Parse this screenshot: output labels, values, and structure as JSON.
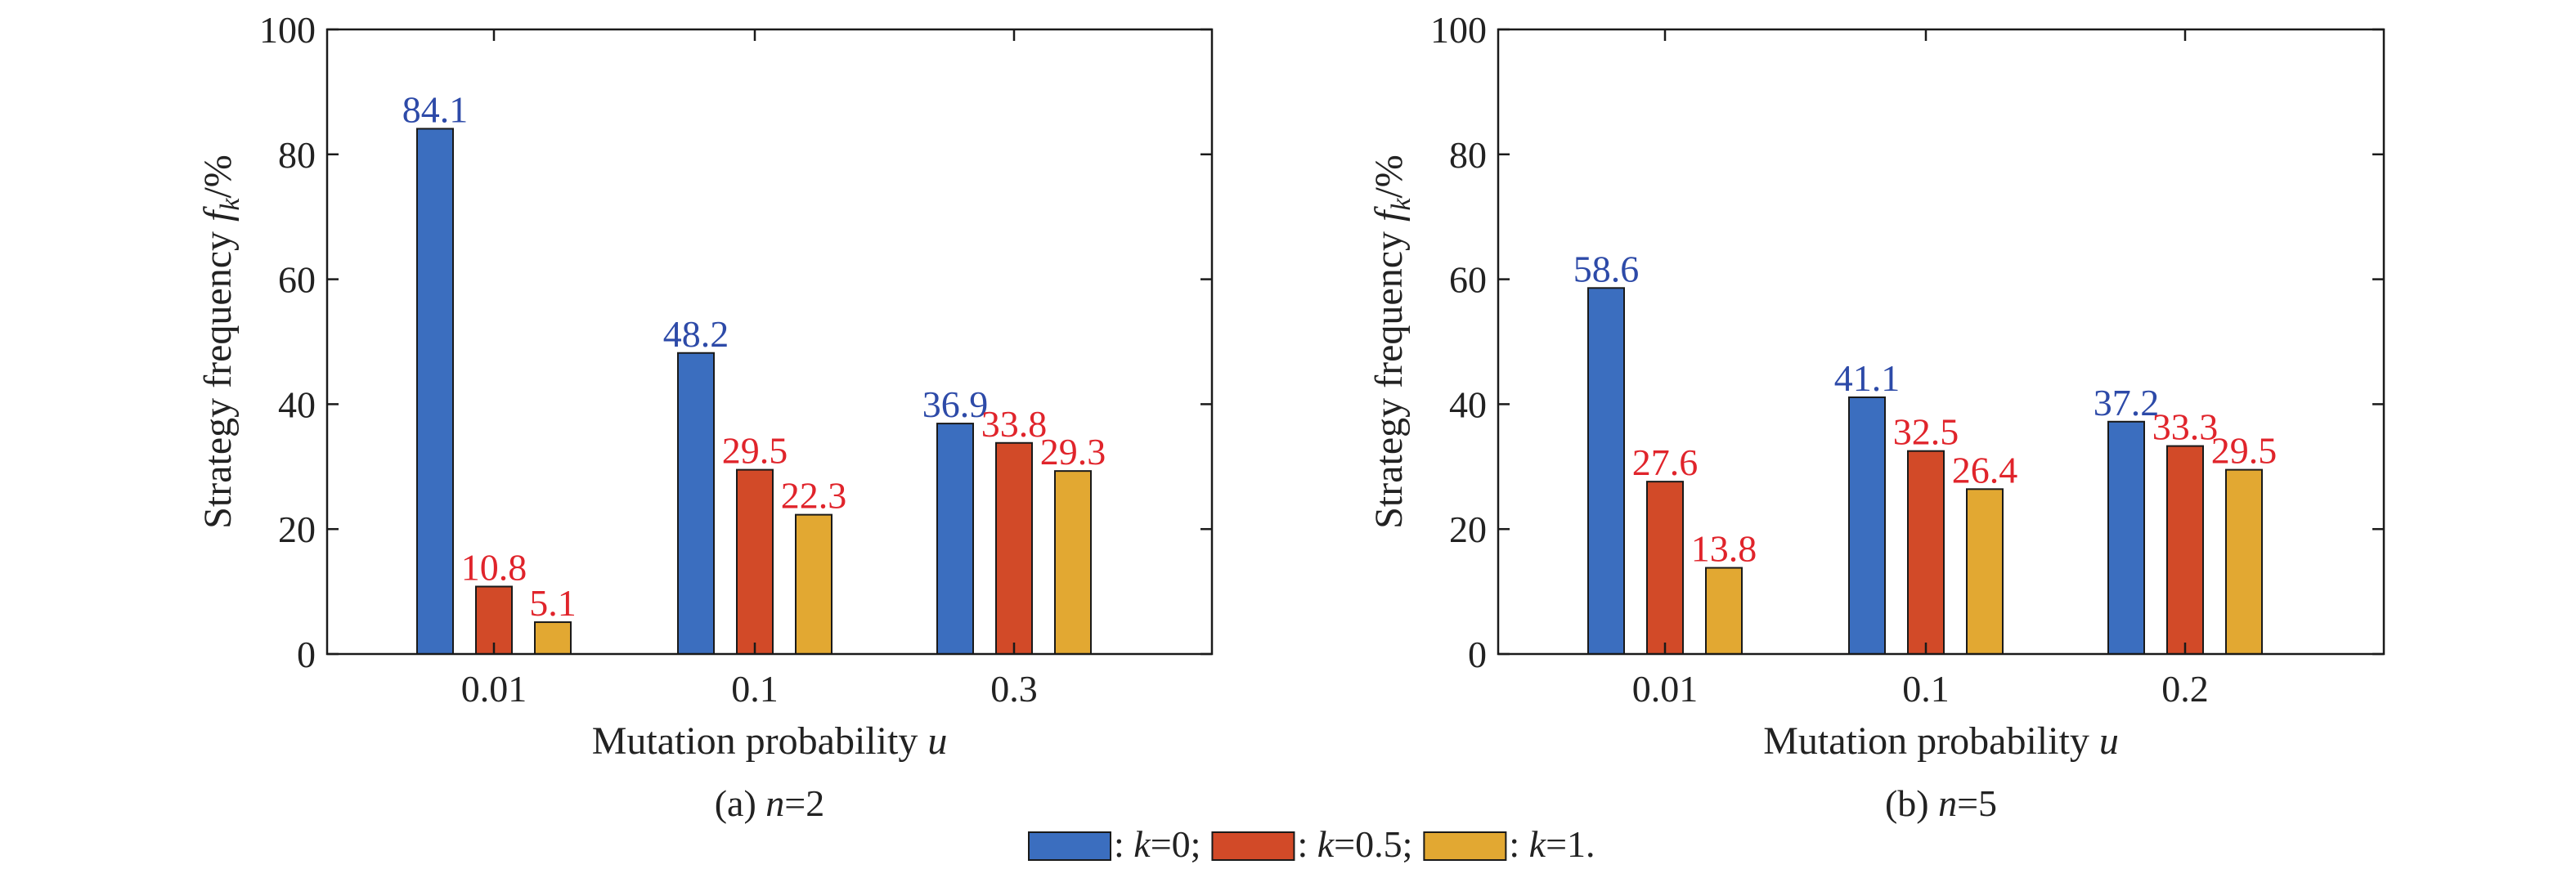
{
  "chart_data": [
    {
      "type": "bar",
      "caption_prefix": "(a) ",
      "caption_var": "n",
      "caption_value": "=2",
      "categories": [
        "0.01",
        "0.1",
        "0.3"
      ],
      "series": [
        {
          "name": "k=0",
          "color": "#3b6ebf",
          "label_color": "#2d4aa8",
          "values": [
            84.1,
            48.2,
            36.9
          ],
          "labels": [
            "84.1",
            "48.2",
            "36.9"
          ]
        },
        {
          "name": "k=0.5",
          "color": "#d24a28",
          "label_color": "#e0242b",
          "values": [
            10.8,
            29.5,
            33.8
          ],
          "labels": [
            "10.8",
            "29.5",
            "33.8"
          ]
        },
        {
          "name": "k=1",
          "color": "#e2a832",
          "label_color": "#e0242b",
          "values": [
            5.1,
            22.3,
            29.3
          ],
          "labels": [
            "5.1",
            "22.3",
            "29.3"
          ]
        }
      ],
      "ylim": [
        0,
        100
      ],
      "yticks": [
        "0",
        "20",
        "40",
        "60",
        "80",
        "100"
      ],
      "xlabel_text": "Mutation probability ",
      "xlabel_var": "u",
      "ylabel_text": "Strategy frequency ",
      "ylabel_var": "f",
      "ylabel_sub": "k",
      "ylabel_unit": "/%"
    },
    {
      "type": "bar",
      "caption_prefix": "(b) ",
      "caption_var": "n",
      "caption_value": "=5",
      "categories": [
        "0.01",
        "0.1",
        "0.2"
      ],
      "series": [
        {
          "name": "k=0",
          "color": "#3b6ebf",
          "label_color": "#2d4aa8",
          "values": [
            58.6,
            41.1,
            37.2
          ],
          "labels": [
            "58.6",
            "41.1",
            "37.2"
          ]
        },
        {
          "name": "k=0.5",
          "color": "#d24a28",
          "label_color": "#e0242b",
          "values": [
            27.6,
            32.5,
            33.3
          ],
          "labels": [
            "27.6",
            "32.5",
            "33.3"
          ]
        },
        {
          "name": "k=1",
          "color": "#e2a832",
          "label_color": "#e0242b",
          "values": [
            13.8,
            26.4,
            29.5
          ],
          "labels": [
            "13.8",
            "26.4",
            "29.5"
          ]
        }
      ],
      "ylim": [
        0,
        100
      ],
      "yticks": [
        "0",
        "20",
        "40",
        "60",
        "80",
        "100"
      ],
      "xlabel_text": "Mutation probability ",
      "xlabel_var": "u",
      "ylabel_text": "Strategy frequency ",
      "ylabel_var": "f",
      "ylabel_sub": "k",
      "ylabel_unit": "/%"
    }
  ],
  "legend": [
    {
      "color": "#3b6ebf",
      "prefix": ": ",
      "var": "k",
      "suffix": "=0;"
    },
    {
      "color": "#d24a28",
      "prefix": ": ",
      "var": "k",
      "suffix": "=0.5;"
    },
    {
      "color": "#e2a832",
      "prefix": ": ",
      "var": "k",
      "suffix": "=1."
    }
  ]
}
